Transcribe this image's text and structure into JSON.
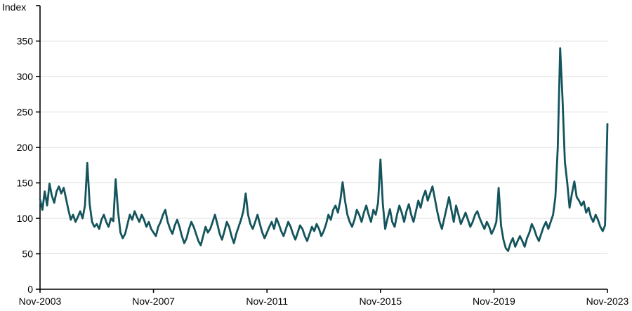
{
  "chart_data": {
    "type": "line",
    "title": "",
    "y_axis_title": "Index",
    "series_name": "Index",
    "x_unit": "month",
    "x_start": "Nov-2003",
    "x_end": "Nov-2023",
    "x_tick_labels": [
      "Nov-2003",
      "Nov-2007",
      "Nov-2011",
      "Nov-2015",
      "Nov-2019",
      "Nov-2023"
    ],
    "x_tick_month_indices": [
      0,
      48,
      96,
      144,
      192,
      240
    ],
    "y_tick_labels": [
      0,
      50,
      100,
      150,
      200,
      250,
      300,
      350
    ],
    "ylim": [
      0,
      400
    ],
    "grid": "horizontal-light-gray",
    "legend": "none",
    "line_color": "#14545c",
    "axis_color": "#000000",
    "grid_color": "#dcdcdc",
    "values": [
      127,
      112,
      138,
      118,
      149,
      132,
      122,
      138,
      145,
      135,
      143,
      128,
      112,
      98,
      105,
      95,
      102,
      110,
      100,
      118,
      178,
      120,
      95,
      88,
      92,
      85,
      98,
      105,
      95,
      88,
      100,
      96,
      155,
      110,
      80,
      72,
      78,
      92,
      105,
      98,
      110,
      102,
      95,
      105,
      98,
      88,
      95,
      85,
      80,
      75,
      88,
      95,
      105,
      112,
      95,
      85,
      78,
      90,
      98,
      88,
      75,
      65,
      72,
      85,
      95,
      88,
      78,
      68,
      62,
      75,
      88,
      80,
      85,
      95,
      105,
      92,
      78,
      70,
      82,
      95,
      88,
      75,
      65,
      78,
      88,
      98,
      110,
      135,
      105,
      92,
      85,
      95,
      105,
      92,
      80,
      72,
      80,
      88,
      95,
      85,
      100,
      92,
      82,
      75,
      85,
      95,
      88,
      78,
      70,
      80,
      90,
      85,
      75,
      68,
      78,
      88,
      82,
      92,
      85,
      75,
      82,
      92,
      105,
      98,
      112,
      118,
      108,
      125,
      151,
      125,
      105,
      95,
      88,
      98,
      112,
      105,
      95,
      108,
      118,
      105,
      95,
      112,
      105,
      122,
      183,
      120,
      85,
      100,
      113,
      95,
      88,
      105,
      118,
      108,
      95,
      110,
      120,
      105,
      95,
      110,
      125,
      115,
      130,
      139,
      125,
      135,
      145,
      128,
      110,
      95,
      85,
      100,
      115,
      130,
      112,
      95,
      118,
      105,
      92,
      100,
      108,
      98,
      88,
      95,
      105,
      110,
      100,
      92,
      85,
      95,
      88,
      78,
      85,
      95,
      143,
      90,
      70,
      58,
      54,
      65,
      72,
      60,
      68,
      75,
      68,
      60,
      72,
      80,
      92,
      85,
      75,
      68,
      78,
      88,
      95,
      85,
      95,
      105,
      130,
      200,
      340,
      270,
      180,
      150,
      115,
      135,
      152,
      130,
      125,
      118,
      124,
      108,
      115,
      102,
      95,
      105,
      98,
      88,
      82,
      90,
      233
    ]
  }
}
